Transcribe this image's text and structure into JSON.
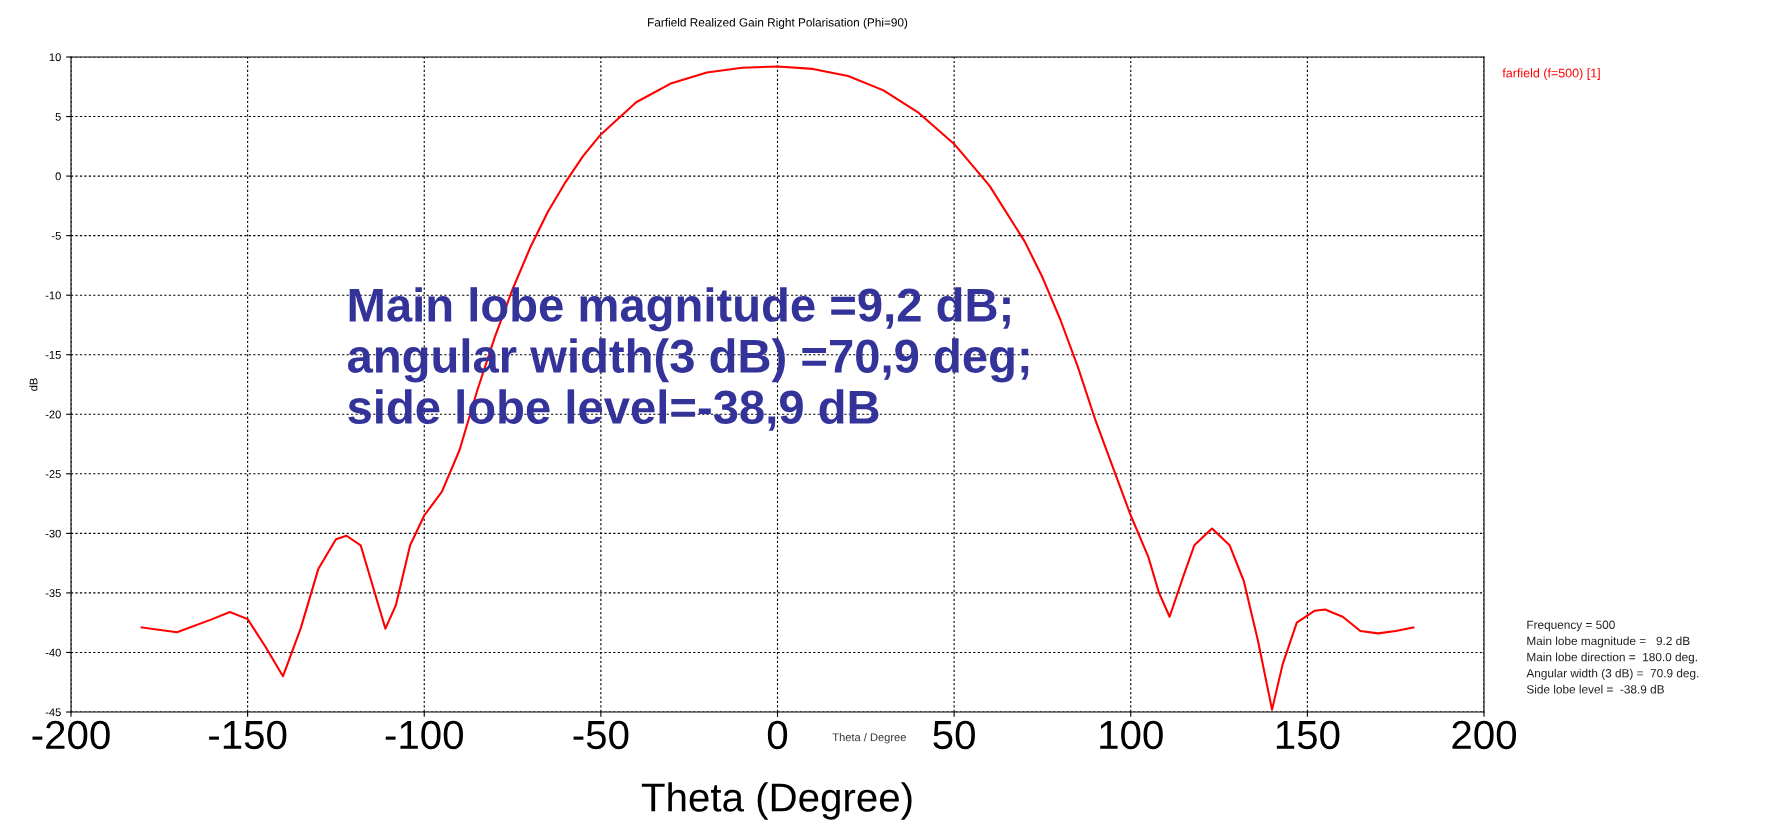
{
  "chart_data": {
    "type": "line",
    "title": "Farfield Realized Gain Right Polarisation (Phi=90)",
    "xlabel": "Theta (Degree)",
    "ylabel": "dB",
    "x": [
      -180,
      -170,
      -160,
      -155,
      -150,
      -145,
      -140,
      -135,
      -130,
      -125,
      -122,
      -118,
      -115,
      -111,
      -108,
      -104,
      -100,
      -95,
      -90,
      -85,
      -80,
      -75,
      -70,
      -65,
      -60,
      -55,
      -50,
      -40,
      -30,
      -20,
      -10,
      0,
      10,
      20,
      30,
      40,
      50,
      60,
      70,
      75,
      80,
      85,
      90,
      95,
      100,
      105,
      108,
      111,
      115,
      118,
      123,
      128,
      132,
      136,
      140,
      143,
      147,
      152,
      155,
      160,
      165,
      170,
      175,
      180
    ],
    "series": [
      {
        "name": "farfield (f=500) [1]",
        "color": "#ff0000",
        "values": [
          -37.9,
          -38.3,
          -37.2,
          -36.6,
          -37.2,
          -39.5,
          -42.0,
          -38.0,
          -33.0,
          -30.5,
          -30.2,
          -31.0,
          -34.0,
          -38.0,
          -36.0,
          -31.0,
          -28.5,
          -26.5,
          -23.0,
          -18.0,
          -13.5,
          -9.5,
          -6.0,
          -3.0,
          -0.5,
          1.7,
          3.5,
          6.2,
          7.8,
          8.7,
          9.1,
          9.2,
          9.0,
          8.4,
          7.2,
          5.3,
          2.7,
          -0.8,
          -5.5,
          -8.5,
          -12.0,
          -16.0,
          -20.5,
          -24.5,
          -28.5,
          -32.0,
          -35.0,
          -37.0,
          -33.5,
          -31.0,
          -29.6,
          -31.0,
          -34.0,
          -39.0,
          -44.8,
          -41.0,
          -37.5,
          -36.5,
          -36.4,
          -37.0,
          -38.2,
          -38.4,
          -38.2,
          -37.9
        ]
      }
    ],
    "xlim": [
      -200,
      200
    ],
    "xticks": [
      -200,
      -150,
      -100,
      -50,
      0,
      50,
      100,
      150,
      200
    ],
    "ylim": [
      -45,
      10
    ],
    "yticks": [
      -45,
      -40,
      -35,
      -30,
      -25,
      -20,
      -15,
      -10,
      -5,
      0,
      5,
      10
    ],
    "grid": true,
    "legend": "top right",
    "marker": "none",
    "line_style": "solid",
    "annotations": [
      "Main lobe magnitude =9,2 dB;\nangular width(3 dB) =70,9 deg;\nside lobe level=-38,9 dB",
      "Theta / Degree",
      "Frequency = 500\nMain lobe magnitude =   9.2 dB\nMain lobe direction =  180.0 deg.\nAngular width (3 dB) =  70.9 deg.\nSide lobe level =  -38.9 dB"
    ]
  }
}
